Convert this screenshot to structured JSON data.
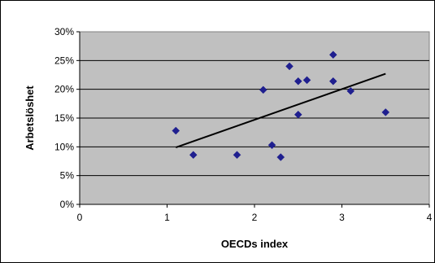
{
  "chart_data": {
    "type": "scatter",
    "title": "",
    "xlabel": "OECDs index",
    "ylabel": "Arbetslöshet",
    "xlim": [
      0,
      4
    ],
    "ylim": [
      0,
      0.3
    ],
    "x_ticks": [
      "0",
      "1",
      "2",
      "3",
      "4"
    ],
    "y_ticks": [
      "0%",
      "5%",
      "10%",
      "15%",
      "20%",
      "25%",
      "30%"
    ],
    "grid": "horizontal",
    "legend": "none",
    "colors": {
      "plot_background": "#c0c0c0",
      "marker": "#1f1f8f",
      "trendline": "#000000",
      "gridline": "#000000"
    },
    "points": [
      {
        "x": 1.1,
        "y": 0.128
      },
      {
        "x": 1.3,
        "y": 0.086
      },
      {
        "x": 1.8,
        "y": 0.086
      },
      {
        "x": 2.1,
        "y": 0.199
      },
      {
        "x": 2.2,
        "y": 0.103
      },
      {
        "x": 2.3,
        "y": 0.082
      },
      {
        "x": 2.4,
        "y": 0.24
      },
      {
        "x": 2.5,
        "y": 0.214
      },
      {
        "x": 2.5,
        "y": 0.156
      },
      {
        "x": 2.6,
        "y": 0.216
      },
      {
        "x": 2.9,
        "y": 0.26
      },
      {
        "x": 2.9,
        "y": 0.214
      },
      {
        "x": 3.1,
        "y": 0.197
      },
      {
        "x": 3.5,
        "y": 0.16
      }
    ],
    "trendline": {
      "x": [
        1.1,
        3.5
      ],
      "y": [
        0.099,
        0.227
      ]
    }
  }
}
